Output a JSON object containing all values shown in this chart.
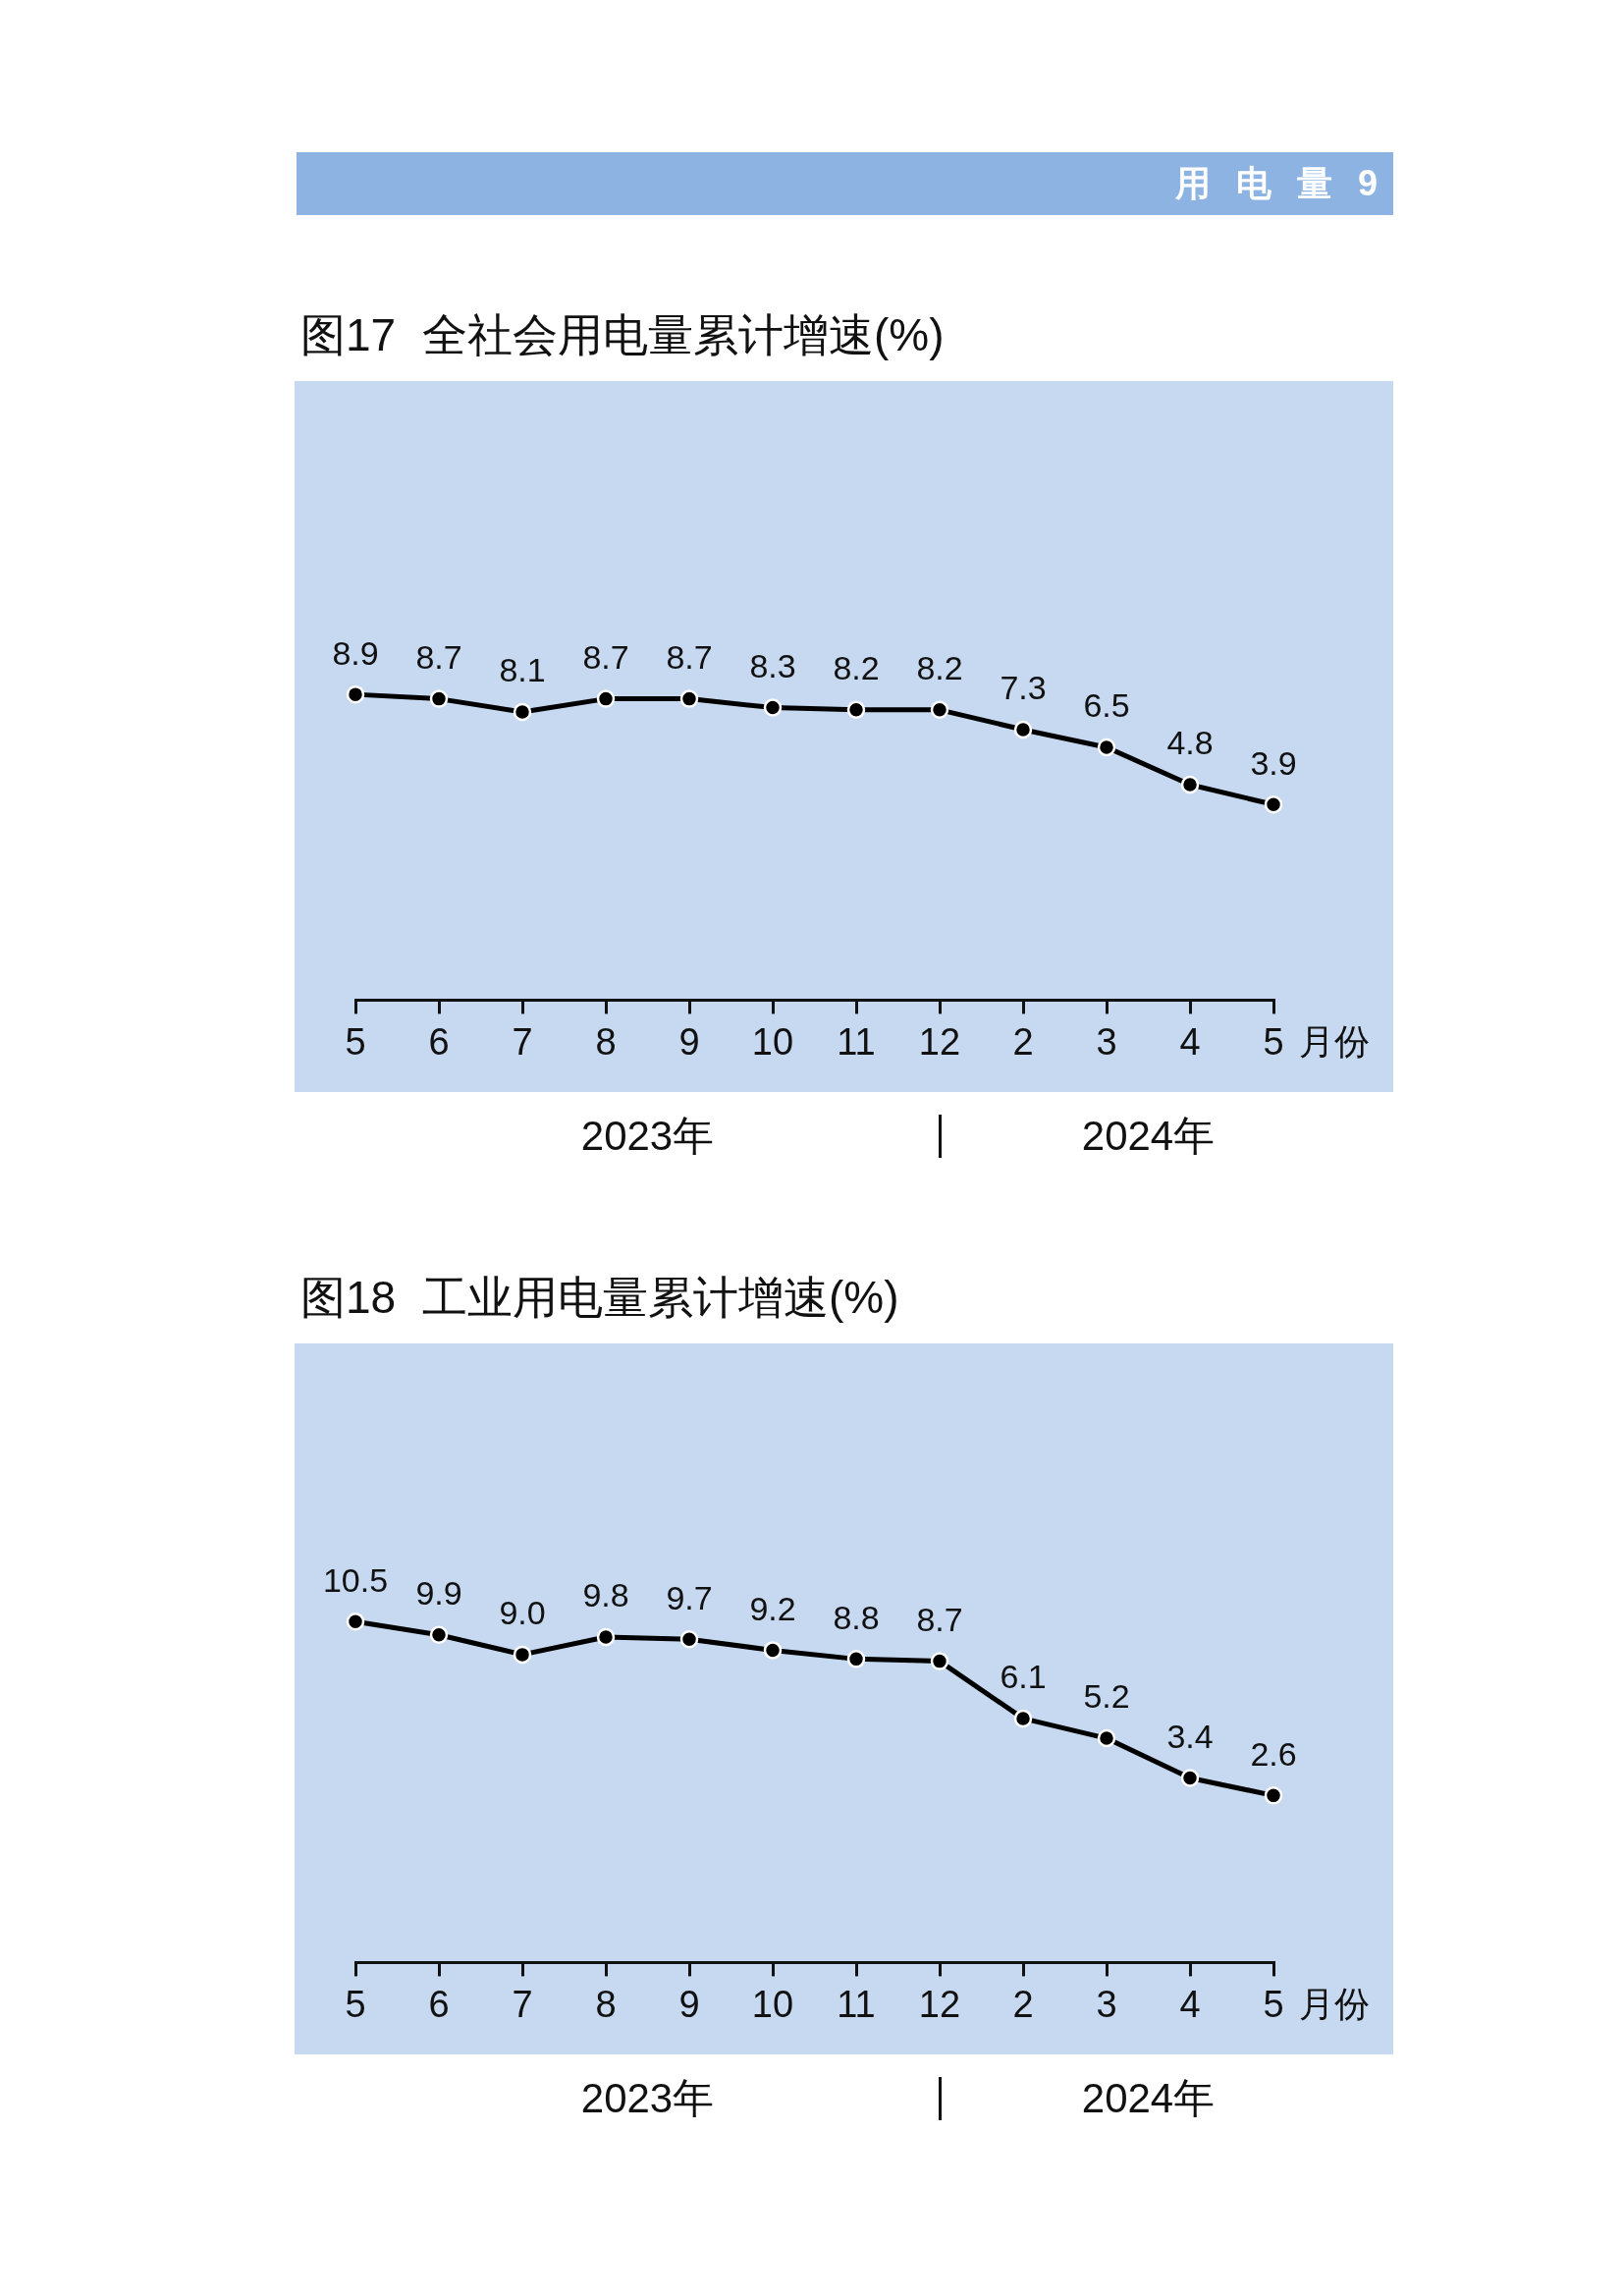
{
  "chart_data": [
    {
      "type": "line",
      "title": "图17 全社会用电量累计增速(%)",
      "xlabel": "月份",
      "categories": [
        "5",
        "6",
        "7",
        "8",
        "9",
        "10",
        "11",
        "12",
        "2",
        "3",
        "4",
        "5"
      ],
      "values": [
        8.9,
        8.7,
        8.1,
        8.7,
        8.7,
        8.3,
        8.2,
        8.2,
        7.3,
        6.5,
        4.8,
        3.9
      ],
      "color": "#000000",
      "data_labels": true,
      "marker": "circle",
      "line_style": "solid",
      "tick_labels": "x",
      "annotations": [
        "用 电 量 9",
        "2023年",
        "2024年"
      ]
    },
    {
      "type": "line",
      "title": "图18 工业用电量累计增速(%)",
      "xlabel": "月份",
      "categories": [
        "5",
        "6",
        "7",
        "8",
        "9",
        "10",
        "11",
        "12",
        "2",
        "3",
        "4",
        "5"
      ],
      "values": [
        10.5,
        9.9,
        9.0,
        9.8,
        9.7,
        9.2,
        8.8,
        8.7,
        6.1,
        5.2,
        3.4,
        2.6
      ],
      "value_labels": [
        "10.5",
        "9.9",
        "9.0",
        "9.8",
        "9.7",
        "9.2",
        "8.8",
        "8.7",
        "6.1",
        "5.2",
        "3.4",
        "2.6"
      ],
      "color": "#000000",
      "marker": "circle",
      "line_style": "solid",
      "tick_labels": "x",
      "annotations": [
        "2023年",
        "2024年"
      ]
    }
  ]
}
